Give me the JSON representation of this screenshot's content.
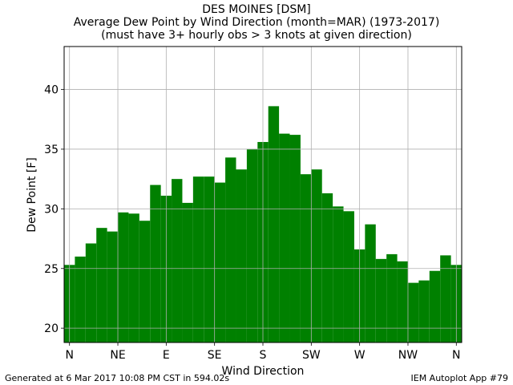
{
  "chart_data": {
    "type": "bar",
    "title": "DES MOINES [DSM]",
    "subtitle": "Average Dew Point by Wind Direction (month=MAR) (1973-2017)",
    "subtitle2": "(must have 3+ hourly obs > 3 knots at given direction)",
    "xlabel": "Wind Direction",
    "ylabel": "Dew Point [F]",
    "x_ticks": [
      {
        "label": "N",
        "deg": 0
      },
      {
        "label": "NE",
        "deg": 45
      },
      {
        "label": "E",
        "deg": 90
      },
      {
        "label": "SE",
        "deg": 135
      },
      {
        "label": "S",
        "deg": 180
      },
      {
        "label": "SW",
        "deg": 225
      },
      {
        "label": "W",
        "deg": 270
      },
      {
        "label": "NW",
        "deg": 315
      },
      {
        "label": "N",
        "deg": 360
      }
    ],
    "y_ticks": [
      20,
      25,
      30,
      35,
      40
    ],
    "xlim": [
      -5,
      365
    ],
    "ylim": [
      18.8,
      43.6
    ],
    "grid": true,
    "bar_width_deg": 10,
    "bar_color": "#008000",
    "x": [
      0,
      10,
      20,
      30,
      40,
      50,
      60,
      70,
      80,
      90,
      100,
      110,
      120,
      130,
      140,
      150,
      160,
      170,
      180,
      190,
      200,
      210,
      220,
      230,
      240,
      250,
      260,
      270,
      280,
      290,
      300,
      310,
      320,
      330,
      340,
      350,
      360
    ],
    "values": [
      25.3,
      26.0,
      27.1,
      28.4,
      28.1,
      29.7,
      29.6,
      29.0,
      32.0,
      31.1,
      32.5,
      30.5,
      32.7,
      32.7,
      32.2,
      34.3,
      33.3,
      35.0,
      35.6,
      38.6,
      36.3,
      36.2,
      32.9,
      33.3,
      31.3,
      30.2,
      29.8,
      26.6,
      28.7,
      25.8,
      26.2,
      25.6,
      23.8,
      24.0,
      24.8,
      26.1,
      25.3
    ]
  },
  "footer": {
    "left": "Generated at 6 Mar 2017 10:08 PM CST in 594.02s",
    "right": "IEM Autoplot App #79"
  }
}
